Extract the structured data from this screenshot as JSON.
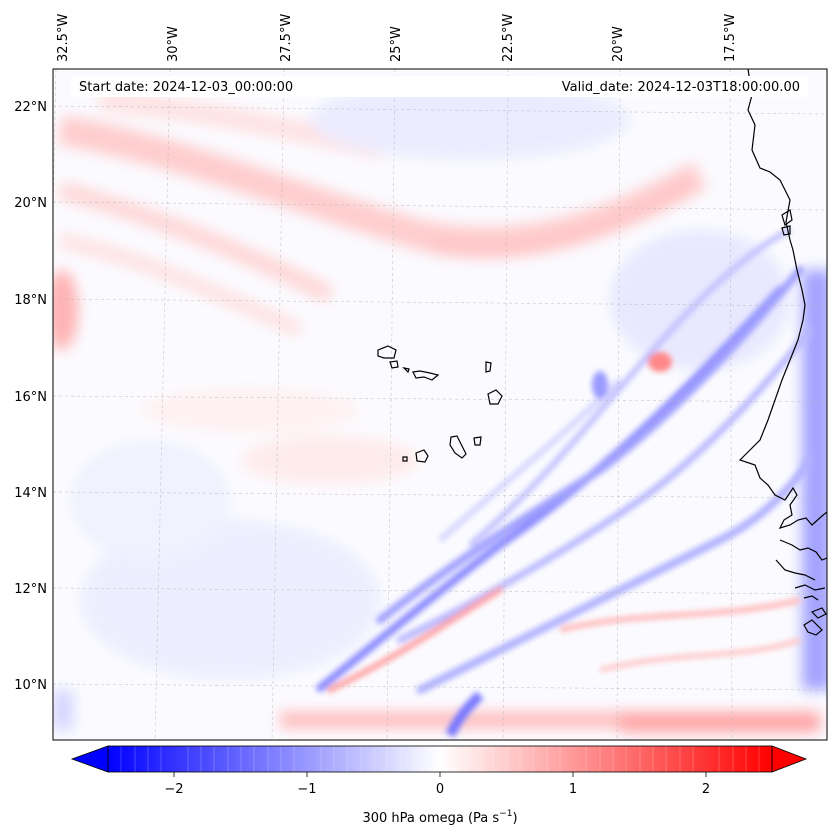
{
  "map": {
    "start_date_label": "Start date: 2024-12-03_00:00:00",
    "valid_date_label": "Valid_date: 2024-12-03T18:00:00.00",
    "lon_labels": [
      "32.5°W",
      "30°W",
      "27.5°W",
      "25°W",
      "22.5°W",
      "20°W",
      "17.5°W"
    ],
    "lat_labels": [
      "22°N",
      "20°N",
      "18°N",
      "16°N",
      "14°N",
      "12°N",
      "10°N"
    ],
    "variable": "300 hPa omega",
    "units": "Pa s⁻¹"
  },
  "colorbar": {
    "label_prefix": "300 hPa omega (Pa s",
    "label_exp": "−1",
    "label_suffix": ")",
    "tick_labels": [
      "−2",
      "−1",
      "0",
      "1",
      "2"
    ],
    "tick_values": [
      -2,
      -1,
      0,
      1,
      2
    ],
    "range": [
      -2.5,
      2.5
    ],
    "extend": "both",
    "colormap": "bwr",
    "low_color": "#0000ff",
    "mid_color": "#ffffff",
    "high_color": "#ff0000"
  }
}
